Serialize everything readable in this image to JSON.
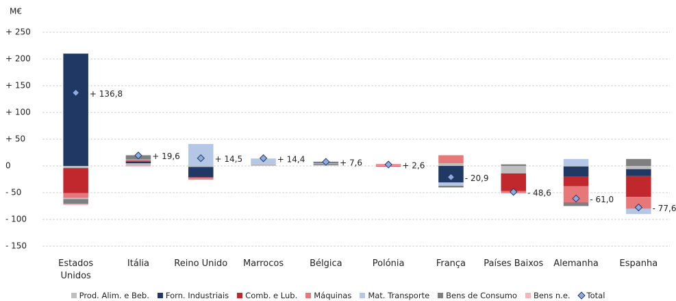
{
  "chart_data": {
    "type": "stacked_bar",
    "y_unit": "M€",
    "categories": [
      "Estados Unidos",
      "Itália",
      "Reino Unido",
      "Marrocos",
      "Bélgica",
      "Polónia",
      "França",
      "Países Baixos",
      "Alemanha",
      "Espanha"
    ],
    "series": [
      {
        "name": "Prod. Alim. e Beb.",
        "color": "#bfbfbf",
        "values": [
          -4,
          5,
          -2,
          4,
          3,
          1,
          5,
          -14,
          -1,
          -6
        ]
      },
      {
        "name": "Forn. Industriais",
        "color": "#1f3864",
        "values": [
          210,
          3,
          -19,
          0,
          1,
          0,
          -31,
          0,
          -19,
          -13
        ]
      },
      {
        "name": "Comb. e Lub.",
        "color": "#c0282d",
        "values": [
          -47,
          2,
          -1,
          0,
          0,
          -1,
          0,
          -33,
          -18,
          -39
        ]
      },
      {
        "name": "Máquinas",
        "color": "#e6787a",
        "values": [
          -9,
          1,
          -2,
          0,
          0,
          2,
          15,
          -3,
          -30,
          -22
        ]
      },
      {
        "name": "Mat. Transporte",
        "color": "#b4c7e7",
        "values": [
          -2,
          1,
          41,
          9,
          1,
          0,
          -6,
          -2,
          13,
          -10
        ]
      },
      {
        "name": "Bens de Consumo",
        "color": "#7f7f7f",
        "values": [
          -9,
          8,
          -1,
          0,
          3,
          0,
          -3,
          3,
          -7,
          13
        ]
      },
      {
        "name": "Bens n.e.",
        "color": "#f4b6b8",
        "values": [
          -2,
          -1,
          -1,
          1,
          0,
          1,
          -1,
          0,
          0,
          0
        ]
      }
    ],
    "totals": {
      "name": "Total",
      "color": "#8faadc",
      "values": [
        136.8,
        19.6,
        14.5,
        14.4,
        7.6,
        2.6,
        -20.9,
        -48.6,
        -61.0,
        -77.6
      ],
      "value_labels": [
        "+ 136,8",
        "+ 19,6",
        "+ 14,5",
        "+ 14,4",
        "+ 7,6",
        "+ 2,6",
        "- 20,9",
        "- 48,6",
        "- 61,0",
        "- 77,6"
      ]
    },
    "ylim": [
      -150,
      250
    ],
    "yticks": [
      {
        "value": -150,
        "label": "- 150"
      },
      {
        "value": -100,
        "label": "- 100"
      },
      {
        "value": -50,
        "label": "- 50"
      },
      0,
      {
        "value": 50,
        "label": "+ 50"
      },
      {
        "value": 100,
        "label": "+ 100"
      },
      {
        "value": 150,
        "label": "+ 150"
      },
      {
        "value": 200,
        "label": "+ 200"
      },
      {
        "value": 250,
        "label": "+ 250"
      }
    ],
    "grid": true
  }
}
